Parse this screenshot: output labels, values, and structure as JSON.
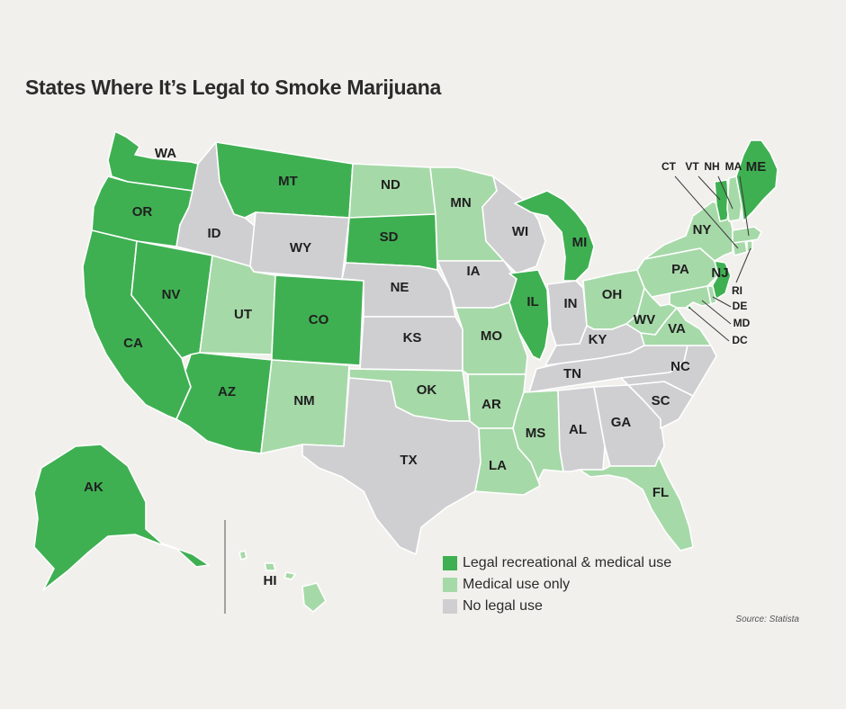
{
  "title": "States Where It’s Legal to Smoke Marijuana",
  "source": "Source: Statista",
  "colors": {
    "rec": "#3fb052",
    "med": "#a6d9a8",
    "none": "#cfcfd2"
  },
  "legend": [
    {
      "key": "rec",
      "label": "Legal recreational & medical use"
    },
    {
      "key": "med",
      "label": "Medical use only"
    },
    {
      "key": "none",
      "label": "No legal use"
    }
  ],
  "states": [
    {
      "code": "WA",
      "status": "rec",
      "label": "WA"
    },
    {
      "code": "OR",
      "status": "rec",
      "label": "OR"
    },
    {
      "code": "CA",
      "status": "rec",
      "label": "CA"
    },
    {
      "code": "NV",
      "status": "rec",
      "label": "NV"
    },
    {
      "code": "ID",
      "status": "none",
      "label": "ID"
    },
    {
      "code": "MT",
      "status": "rec",
      "label": "MT"
    },
    {
      "code": "WY",
      "status": "none",
      "label": "WY"
    },
    {
      "code": "UT",
      "status": "med",
      "label": "UT"
    },
    {
      "code": "CO",
      "status": "rec",
      "label": "CO"
    },
    {
      "code": "AZ",
      "status": "rec",
      "label": "AZ"
    },
    {
      "code": "NM",
      "status": "med",
      "label": "NM"
    },
    {
      "code": "ND",
      "status": "med",
      "label": "ND"
    },
    {
      "code": "SD",
      "status": "rec",
      "label": "SD"
    },
    {
      "code": "NE",
      "status": "none",
      "label": "NE"
    },
    {
      "code": "KS",
      "status": "none",
      "label": "KS"
    },
    {
      "code": "OK",
      "status": "med",
      "label": "OK"
    },
    {
      "code": "TX",
      "status": "none",
      "label": "TX"
    },
    {
      "code": "MN",
      "status": "med",
      "label": "MN"
    },
    {
      "code": "IA",
      "status": "none",
      "label": "IA"
    },
    {
      "code": "MO",
      "status": "med",
      "label": "MO"
    },
    {
      "code": "AR",
      "status": "med",
      "label": "AR"
    },
    {
      "code": "LA",
      "status": "med",
      "label": "LA"
    },
    {
      "code": "WI",
      "status": "none",
      "label": "WI"
    },
    {
      "code": "IL",
      "status": "rec",
      "label": "IL"
    },
    {
      "code": "MI",
      "status": "rec",
      "label": "MI"
    },
    {
      "code": "IN",
      "status": "none",
      "label": "IN"
    },
    {
      "code": "OH",
      "status": "med",
      "label": "OH"
    },
    {
      "code": "KY",
      "status": "none",
      "label": "KY"
    },
    {
      "code": "TN",
      "status": "none",
      "label": "TN"
    },
    {
      "code": "MS",
      "status": "med",
      "label": "MS"
    },
    {
      "code": "AL",
      "status": "none",
      "label": "AL"
    },
    {
      "code": "GA",
      "status": "none",
      "label": "GA"
    },
    {
      "code": "FL",
      "status": "med",
      "label": "FL"
    },
    {
      "code": "SC",
      "status": "none",
      "label": "SC"
    },
    {
      "code": "NC",
      "status": "none",
      "label": "NC"
    },
    {
      "code": "VA",
      "status": "med",
      "label": "VA"
    },
    {
      "code": "WV",
      "status": "med",
      "label": "WV"
    },
    {
      "code": "PA",
      "status": "med",
      "label": "PA"
    },
    {
      "code": "NY",
      "status": "med",
      "label": "NY"
    },
    {
      "code": "NJ",
      "status": "rec",
      "label": "NJ"
    },
    {
      "code": "DE",
      "status": "med",
      "label": "DE"
    },
    {
      "code": "MD",
      "status": "med",
      "label": "MD"
    },
    {
      "code": "DC",
      "status": "rec",
      "label": "DC"
    },
    {
      "code": "CT",
      "status": "med",
      "label": "CT"
    },
    {
      "code": "RI",
      "status": "med",
      "label": "RI"
    },
    {
      "code": "MA",
      "status": "med",
      "label": "MA"
    },
    {
      "code": "VT",
      "status": "rec",
      "label": "VT"
    },
    {
      "code": "NH",
      "status": "med",
      "label": "NH"
    },
    {
      "code": "ME",
      "status": "rec",
      "label": "ME"
    },
    {
      "code": "AK",
      "status": "rec",
      "label": "AK"
    },
    {
      "code": "HI",
      "status": "med",
      "label": "HI"
    }
  ]
}
